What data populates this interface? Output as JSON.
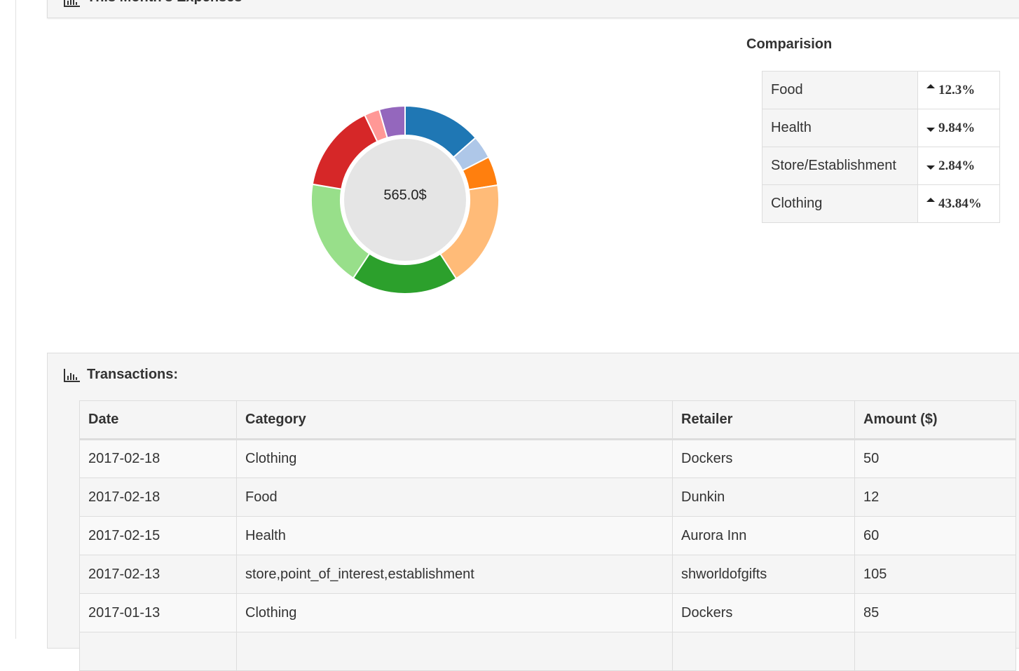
{
  "expenses": {
    "title": "This Month's Expenses"
  },
  "chart_data": {
    "type": "pie",
    "center_label": "565.0$",
    "values": [
      76.4,
      22.4,
      28.3,
      103.6,
      104.5,
      103.6,
      86.3,
      14.9,
      25.1
    ],
    "colors": [
      "#1f77b4",
      "#aec7e8",
      "#ff7f0e",
      "#ffbb78",
      "#2ca02c",
      "#98df8a",
      "#d62728",
      "#ff9896",
      "#9467bd"
    ]
  },
  "comparison": {
    "title": "Comparision",
    "rows": [
      {
        "category": "Food",
        "direction": "up",
        "change": "12.3%"
      },
      {
        "category": "Health",
        "direction": "down",
        "change": "9.84%"
      },
      {
        "category": "Store/Establishment",
        "direction": "down",
        "change": "2.84%"
      },
      {
        "category": "Clothing",
        "direction": "up",
        "change": "43.84%"
      }
    ]
  },
  "transactions": {
    "title": "Transactions:",
    "headers": [
      "Date",
      "Category",
      "Retailer",
      "Amount ($)"
    ],
    "rows": [
      [
        "2017-02-18",
        "Clothing",
        "Dockers",
        50
      ],
      [
        "2017-02-18",
        "Food",
        "Dunkin",
        12
      ],
      [
        "2017-02-15",
        "Health",
        "Aurora Inn",
        60
      ],
      [
        "2017-02-13",
        "store,point_of_interest,establishment",
        "shworldofgifts",
        105
      ],
      [
        "2017-01-13",
        "Clothing",
        "Dockers",
        85
      ]
    ]
  }
}
